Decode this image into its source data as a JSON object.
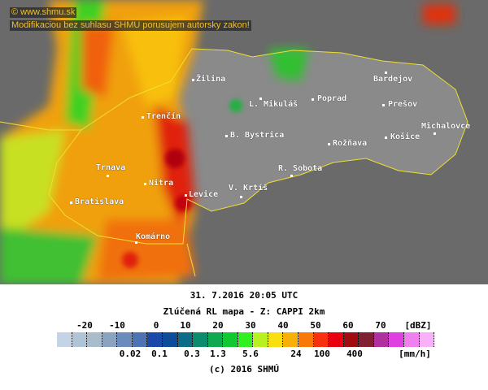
{
  "credits": {
    "site": "© www.shmu.sk",
    "warning": "Modifikaciou bez suhlasu SHMU porusujem autorsky zakon!"
  },
  "cities": [
    {
      "name": "Žilina"
    },
    {
      "name": "Trenčín"
    },
    {
      "name": "L. Mikuláš"
    },
    {
      "name": "Poprad"
    },
    {
      "name": "Bardejov"
    },
    {
      "name": "Prešov"
    },
    {
      "name": "Michalovce"
    },
    {
      "name": "Košice"
    },
    {
      "name": "Rožňava"
    },
    {
      "name": "B. Bystrica"
    },
    {
      "name": "R. Sobota"
    },
    {
      "name": "V. Krtíš"
    },
    {
      "name": "Levice"
    },
    {
      "name": "Nitra"
    },
    {
      "name": "Trnava"
    },
    {
      "name": "Bratislava"
    },
    {
      "name": "Komárno"
    }
  ],
  "caption": {
    "datetime": "31. 7.2016 20:05 UTC",
    "product": "Zlúčená RL mapa - Z: CAPPI 2km",
    "copyright": "(c) 2016 SHMÚ"
  },
  "legend": {
    "dbz_ticks": [
      "-20",
      "-10",
      "0",
      "10",
      "20",
      "30",
      "40",
      "50",
      "60",
      "70"
    ],
    "dbz_unit": "[dBZ]",
    "rain_ticks": [
      "0.02",
      "0.1",
      "0.3",
      "1.3",
      "5.6",
      "24",
      "100",
      "400"
    ],
    "rain_unit": "[mm/h]",
    "colors": [
      "#c4d4e4",
      "#b0c4d8",
      "#a8bccc",
      "#8aa4c0",
      "#6a8cbc",
      "#4c74b4",
      "#1c48a8",
      "#0c4c98",
      "#0c6c88",
      "#0c8c6c",
      "#10a850",
      "#10c830",
      "#30f020",
      "#b8f020",
      "#f8e010",
      "#f8b008",
      "#f87808",
      "#f83010",
      "#e80010",
      "#a00c10",
      "#802030",
      "#b030a0",
      "#e040e0",
      "#f080f0",
      "#f8b0f8"
    ]
  }
}
